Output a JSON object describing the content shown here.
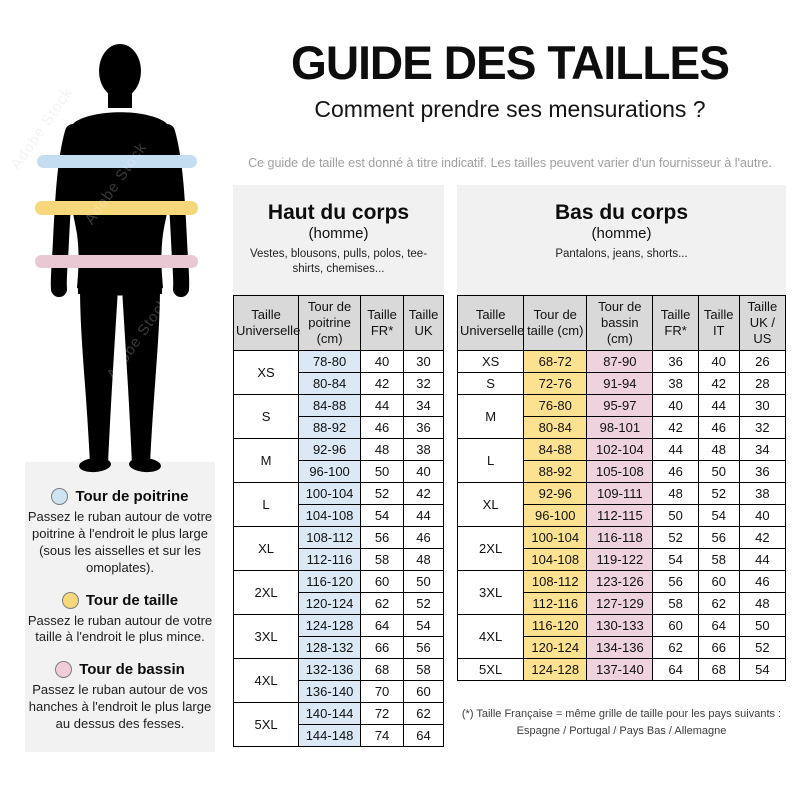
{
  "header": {
    "title": "GUIDE DES TAILLES",
    "subtitle": "Comment prendre ses mensurations ?",
    "disclaimer": "Ce guide de taille est donné à titre indicatif. Les tailles peuvent varier d'un fournisseur à l'autre."
  },
  "watermark": "Adobe Stock",
  "figure": {
    "bands": [
      {
        "name": "chest",
        "color": "#c4ddf0"
      },
      {
        "name": "waist",
        "color": "#f6d87b"
      },
      {
        "name": "hips",
        "color": "#e9c7d3"
      }
    ]
  },
  "legend": {
    "items": [
      {
        "title": "Tour de poitrine",
        "color": "#cfe3f3",
        "description": "Passez le ruban autour de votre poitrine à l'endroit le plus large (sous les aisselles et sur les omoplates)."
      },
      {
        "title": "Tour de taille",
        "color": "#f6d87b",
        "description": "Passez le ruban autour de votre taille à l'endroit le plus mince."
      },
      {
        "title": "Tour de bassin",
        "color": "#f2ccd8",
        "description": "Passez le ruban autour de vos hanches à l'endroit le plus large au dessus des fesses."
      }
    ]
  },
  "upper_table": {
    "title": "Haut du corps",
    "subtitle": "(homme)",
    "description": "Vestes, blousons, pulls, polos, tee-shirts, chemises...",
    "headers": [
      "Taille Universelle",
      "Tour de poitrine (cm)",
      "Taille FR*",
      "Taille UK"
    ],
    "groups": [
      {
        "size": "XS",
        "rows": [
          [
            "78-80",
            "40",
            "30"
          ],
          [
            "80-84",
            "42",
            "32"
          ]
        ]
      },
      {
        "size": "S",
        "rows": [
          [
            "84-88",
            "44",
            "34"
          ],
          [
            "88-92",
            "46",
            "36"
          ]
        ]
      },
      {
        "size": "M",
        "rows": [
          [
            "92-96",
            "48",
            "38"
          ],
          [
            "96-100",
            "50",
            "40"
          ]
        ]
      },
      {
        "size": "L",
        "rows": [
          [
            "100-104",
            "52",
            "42"
          ],
          [
            "104-108",
            "54",
            "44"
          ]
        ]
      },
      {
        "size": "XL",
        "rows": [
          [
            "108-112",
            "56",
            "46"
          ],
          [
            "112-116",
            "58",
            "48"
          ]
        ]
      },
      {
        "size": "2XL",
        "rows": [
          [
            "116-120",
            "60",
            "50"
          ],
          [
            "120-124",
            "62",
            "52"
          ]
        ]
      },
      {
        "size": "3XL",
        "rows": [
          [
            "124-128",
            "64",
            "54"
          ],
          [
            "128-132",
            "66",
            "56"
          ]
        ]
      },
      {
        "size": "4XL",
        "rows": [
          [
            "132-136",
            "68",
            "58"
          ],
          [
            "136-140",
            "70",
            "60"
          ]
        ]
      },
      {
        "size": "5XL",
        "rows": [
          [
            "140-144",
            "72",
            "62"
          ],
          [
            "144-148",
            "74",
            "64"
          ]
        ]
      }
    ]
  },
  "lower_table": {
    "title": "Bas du corps",
    "subtitle": "(homme)",
    "description": "Pantalons, jeans, shorts...",
    "headers": [
      "Taille Universelle",
      "Tour de taille (cm)",
      "Tour de bassin (cm)",
      "Taille FR*",
      "Taille IT",
      "Taille UK / US"
    ],
    "groups": [
      {
        "size": "XS",
        "rows": [
          [
            "68-72",
            "87-90",
            "36",
            "40",
            "26"
          ]
        ]
      },
      {
        "size": "S",
        "rows": [
          [
            "72-76",
            "91-94",
            "38",
            "42",
            "28"
          ]
        ]
      },
      {
        "size": "M",
        "rows": [
          [
            "76-80",
            "95-97",
            "40",
            "44",
            "30"
          ],
          [
            "80-84",
            "98-101",
            "42",
            "46",
            "32"
          ]
        ]
      },
      {
        "size": "L",
        "rows": [
          [
            "84-88",
            "102-104",
            "44",
            "48",
            "34"
          ],
          [
            "88-92",
            "105-108",
            "46",
            "50",
            "36"
          ]
        ]
      },
      {
        "size": "XL",
        "rows": [
          [
            "92-96",
            "109-111",
            "48",
            "52",
            "38"
          ],
          [
            "96-100",
            "112-115",
            "50",
            "54",
            "40"
          ]
        ]
      },
      {
        "size": "2XL",
        "rows": [
          [
            "100-104",
            "116-118",
            "52",
            "56",
            "42"
          ],
          [
            "104-108",
            "119-122",
            "54",
            "58",
            "44"
          ]
        ]
      },
      {
        "size": "3XL",
        "rows": [
          [
            "108-112",
            "123-126",
            "56",
            "60",
            "46"
          ],
          [
            "112-116",
            "127-129",
            "58",
            "62",
            "48"
          ]
        ]
      },
      {
        "size": "4XL",
        "rows": [
          [
            "116-120",
            "130-133",
            "60",
            "64",
            "50"
          ],
          [
            "120-124",
            "134-136",
            "62",
            "66",
            "52"
          ]
        ]
      },
      {
        "size": "5XL",
        "rows": [
          [
            "124-128",
            "137-140",
            "64",
            "68",
            "54"
          ]
        ]
      }
    ]
  },
  "footnote": {
    "line1": "(*) Taille Française = même grille de taille pour les pays suivants :",
    "line2": "Espagne / Portugal / Pays Bas / Allemagne"
  },
  "colors": {
    "blue_cell": "#dbe9f6",
    "yellow_cell": "#fce290",
    "pink_cell": "#eed2dd",
    "header_cell": "#d9d9d9",
    "panel": "#f2f2f2"
  }
}
